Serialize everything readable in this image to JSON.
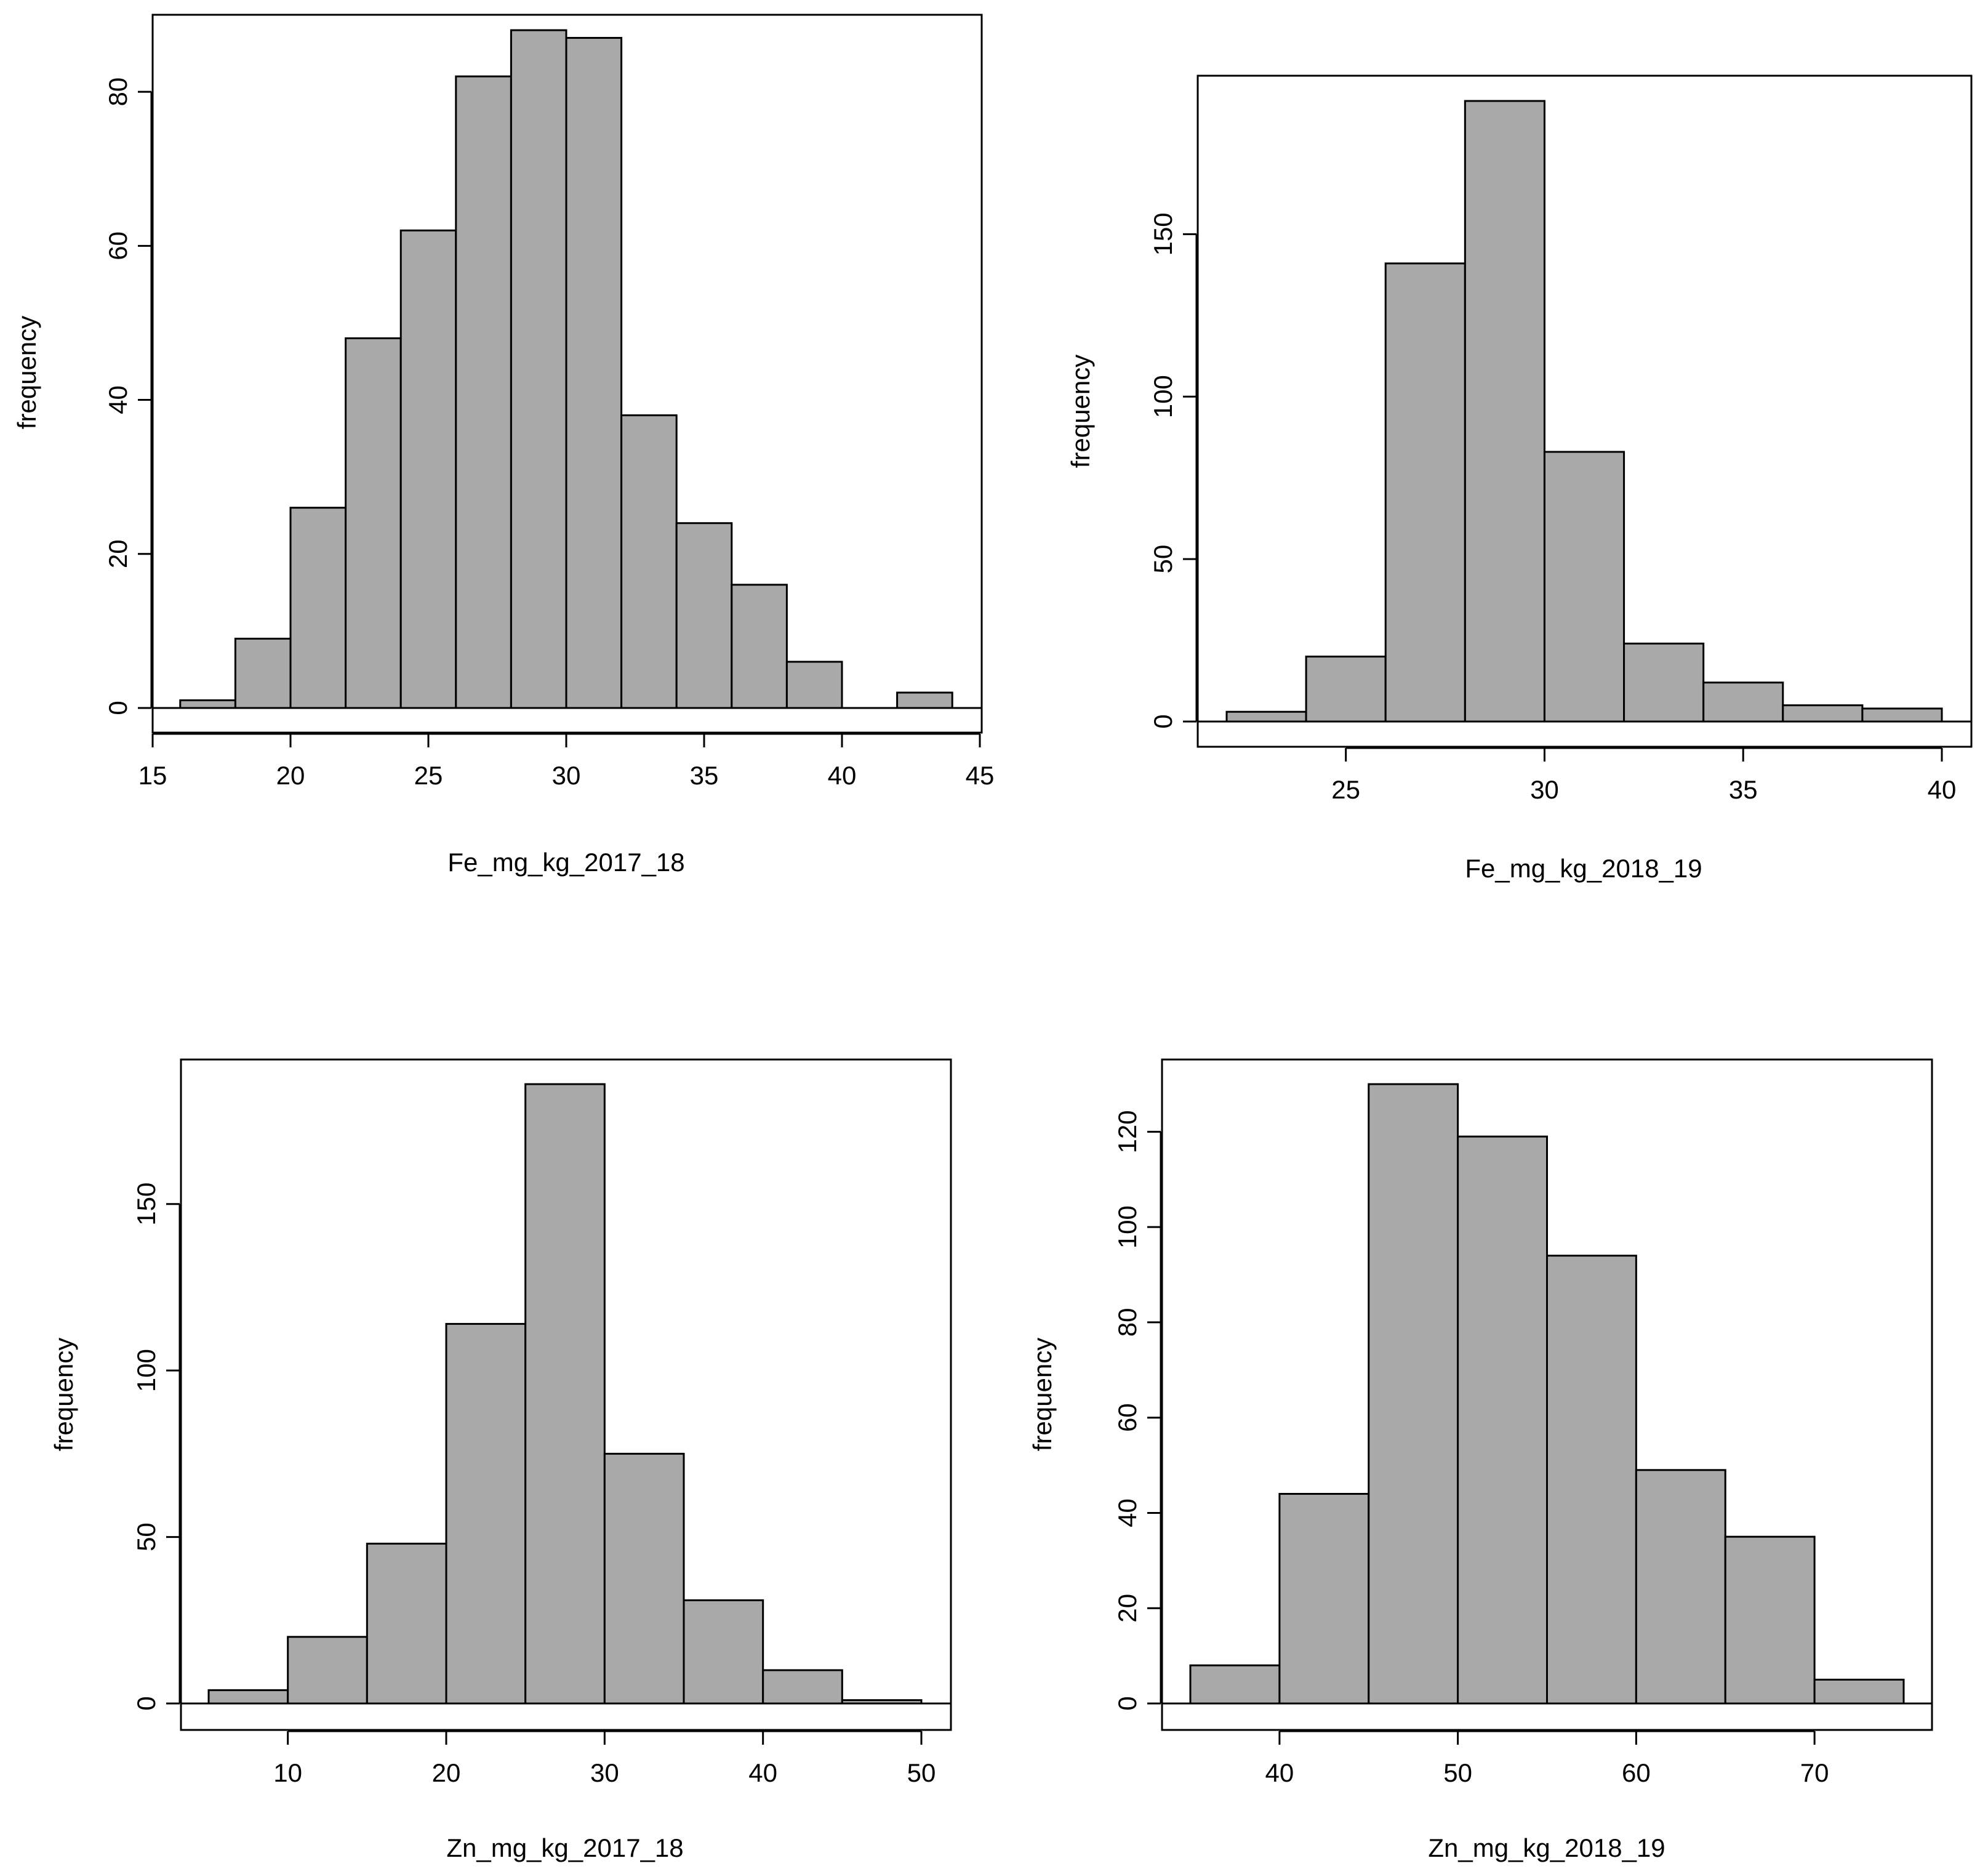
{
  "colors": {
    "bar_fill": "#a9a9a9",
    "stroke": "#000000",
    "background": "#ffffff"
  },
  "chart_data": [
    {
      "type": "bar",
      "subtype": "histogram",
      "title": "",
      "xlabel": "Fe_mg_kg_2017_18",
      "ylabel": "frequency",
      "bin_edges": [
        16,
        18,
        20,
        22,
        24,
        26,
        28,
        30,
        32,
        34,
        36,
        38,
        40,
        42,
        44
      ],
      "values": [
        1,
        9,
        26,
        48,
        62,
        82,
        88,
        87,
        38,
        24,
        16,
        6,
        0,
        2
      ],
      "xlim": [
        15,
        45
      ],
      "ylim": [
        0,
        90
      ],
      "xticks": [
        15,
        20,
        25,
        30,
        35,
        40,
        45
      ],
      "yticks": [
        0,
        20,
        40,
        60,
        80
      ],
      "grid": false
    },
    {
      "type": "bar",
      "subtype": "histogram",
      "title": "",
      "xlabel": "Fe_mg_kg_2018_19",
      "ylabel": "frequency",
      "bin_edges": [
        22,
        24,
        26,
        28,
        30,
        32,
        34,
        36,
        38,
        40
      ],
      "values": [
        3,
        20,
        141,
        191,
        83,
        24,
        12,
        5,
        4
      ],
      "xlim": [
        22,
        40
      ],
      "ylim": [
        0,
        191
      ],
      "xticks": [
        25,
        30,
        35,
        40
      ],
      "yticks": [
        0,
        50,
        100,
        150
      ],
      "grid": false
    },
    {
      "type": "bar",
      "subtype": "histogram",
      "title": "",
      "xlabel": "Zn_mg_kg_2017_18",
      "ylabel": "frequency",
      "bin_edges": [
        5,
        10,
        15,
        20,
        25,
        30,
        35,
        40,
        45,
        50
      ],
      "values": [
        4,
        20,
        48,
        114,
        186,
        75,
        31,
        10,
        1
      ],
      "xlim": [
        5,
        50
      ],
      "ylim": [
        0,
        186
      ],
      "xticks": [
        10,
        20,
        30,
        40,
        50
      ],
      "yticks": [
        0,
        50,
        100,
        150
      ],
      "grid": false
    },
    {
      "type": "bar",
      "subtype": "histogram",
      "title": "",
      "xlabel": "Zn_mg_kg_2018_19",
      "ylabel": "frequency",
      "bin_edges": [
        35,
        40,
        45,
        50,
        55,
        60,
        65,
        70,
        75
      ],
      "values": [
        8,
        44,
        130,
        119,
        94,
        49,
        35,
        5
      ],
      "xlim": [
        35,
        75
      ],
      "ylim": [
        0,
        130
      ],
      "xticks": [
        40,
        50,
        60,
        70
      ],
      "yticks": [
        0,
        20,
        40,
        60,
        80,
        100,
        120
      ],
      "grid": false
    }
  ]
}
